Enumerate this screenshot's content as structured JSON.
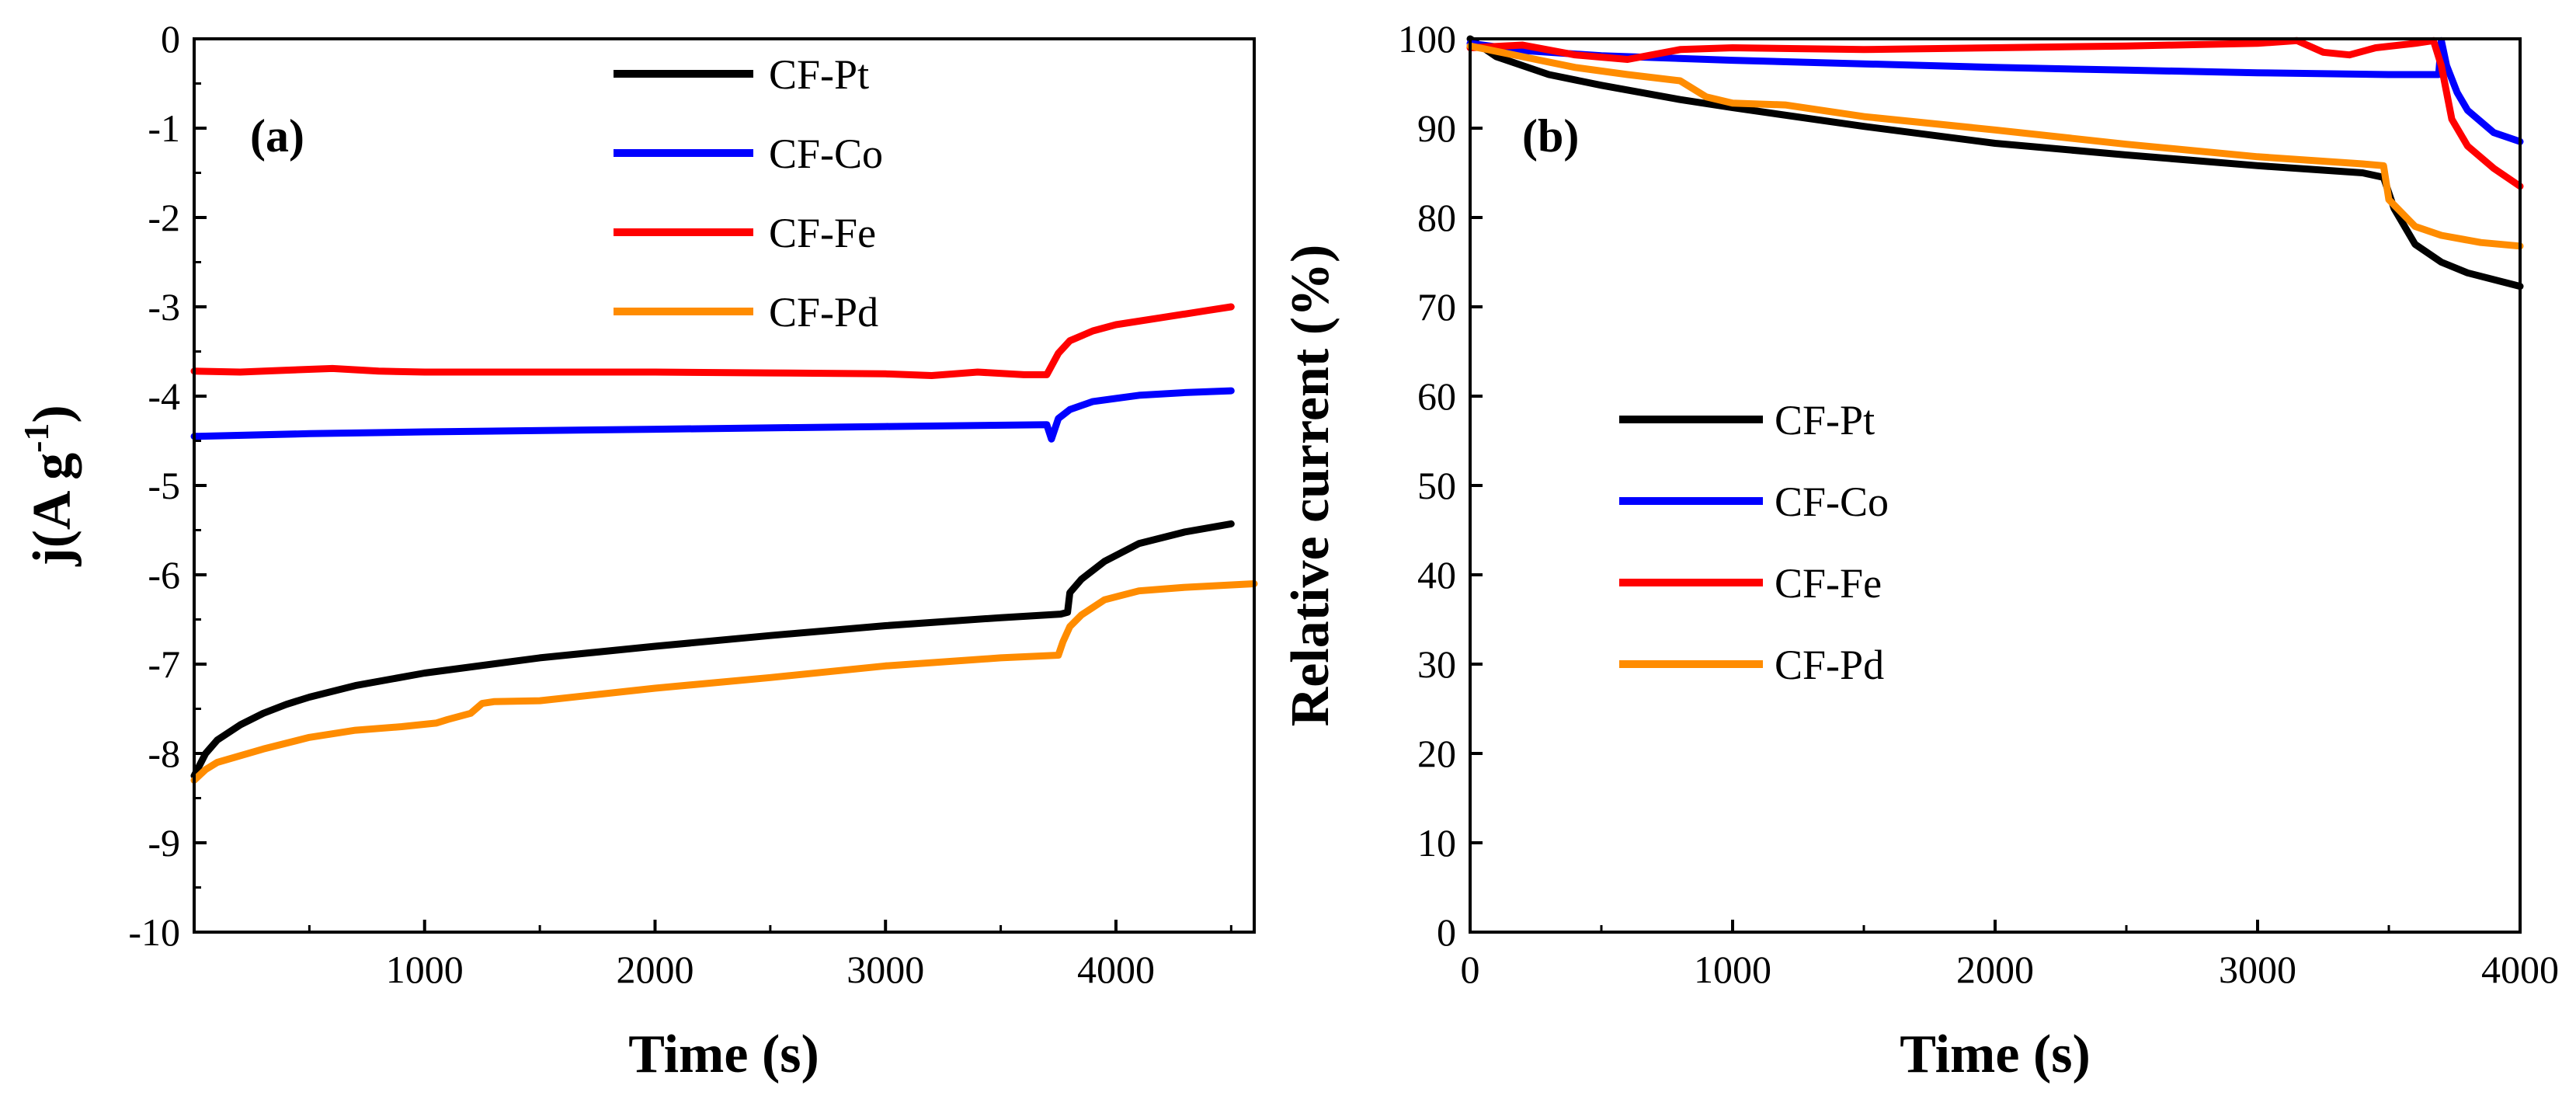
{
  "chart_data": [
    {
      "type": "line",
      "panel_label": "(a)",
      "xlabel": "Time (s)",
      "ylabel": "j(A g",
      "ylabel_superscript": "-1",
      "ylabel_suffix": ")",
      "xlim": [
        0,
        4600
      ],
      "ylim": [
        -10,
        0
      ],
      "xticks": [
        1000,
        2000,
        3000,
        4000
      ],
      "yticks": [
        0,
        -1,
        -2,
        -3,
        -4,
        -5,
        -6,
        -7,
        -8,
        -9,
        -10
      ],
      "legend_position": "top-center",
      "series": [
        {
          "name": "CF-Pt",
          "color": "#000000",
          "points": [
            [
              0,
              -8.25
            ],
            [
              50,
              -8.0
            ],
            [
              100,
              -7.85
            ],
            [
              200,
              -7.68
            ],
            [
              300,
              -7.55
            ],
            [
              400,
              -7.45
            ],
            [
              500,
              -7.37
            ],
            [
              700,
              -7.24
            ],
            [
              1000,
              -7.1
            ],
            [
              1500,
              -6.93
            ],
            [
              2000,
              -6.8
            ],
            [
              2500,
              -6.68
            ],
            [
              3000,
              -6.57
            ],
            [
              3500,
              -6.48
            ],
            [
              3760,
              -6.44
            ],
            [
              3790,
              -6.42
            ],
            [
              3800,
              -6.2
            ],
            [
              3850,
              -6.05
            ],
            [
              3950,
              -5.85
            ],
            [
              4100,
              -5.65
            ],
            [
              4300,
              -5.52
            ],
            [
              4500,
              -5.43
            ]
          ]
        },
        {
          "name": "CF-Co",
          "color": "#0000ff",
          "points": [
            [
              0,
              -4.45
            ],
            [
              500,
              -4.42
            ],
            [
              1000,
              -4.4
            ],
            [
              2000,
              -4.37
            ],
            [
              3000,
              -4.34
            ],
            [
              3700,
              -4.32
            ],
            [
              3720,
              -4.48
            ],
            [
              3750,
              -4.25
            ],
            [
              3800,
              -4.15
            ],
            [
              3900,
              -4.06
            ],
            [
              4100,
              -3.99
            ],
            [
              4300,
              -3.96
            ],
            [
              4500,
              -3.94
            ]
          ]
        },
        {
          "name": "CF-Fe",
          "color": "#ff0000",
          "points": [
            [
              0,
              -3.72
            ],
            [
              200,
              -3.73
            ],
            [
              400,
              -3.71
            ],
            [
              600,
              -3.69
            ],
            [
              800,
              -3.72
            ],
            [
              1000,
              -3.73
            ],
            [
              1500,
              -3.73
            ],
            [
              2000,
              -3.73
            ],
            [
              2500,
              -3.74
            ],
            [
              3000,
              -3.75
            ],
            [
              3200,
              -3.77
            ],
            [
              3400,
              -3.73
            ],
            [
              3600,
              -3.76
            ],
            [
              3700,
              -3.76
            ],
            [
              3750,
              -3.52
            ],
            [
              3800,
              -3.38
            ],
            [
              3900,
              -3.27
            ],
            [
              4000,
              -3.2
            ],
            [
              4200,
              -3.12
            ],
            [
              4400,
              -3.04
            ],
            [
              4500,
              -3.0
            ]
          ]
        },
        {
          "name": "CF-Pd",
          "color": "#ff8c00",
          "points": [
            [
              0,
              -8.3
            ],
            [
              50,
              -8.18
            ],
            [
              100,
              -8.1
            ],
            [
              300,
              -7.95
            ],
            [
              500,
              -7.82
            ],
            [
              700,
              -7.74
            ],
            [
              900,
              -7.7
            ],
            [
              1050,
              -7.66
            ],
            [
              1100,
              -7.62
            ],
            [
              1200,
              -7.55
            ],
            [
              1250,
              -7.44
            ],
            [
              1300,
              -7.42
            ],
            [
              1500,
              -7.41
            ],
            [
              2000,
              -7.27
            ],
            [
              2500,
              -7.15
            ],
            [
              3000,
              -7.02
            ],
            [
              3500,
              -6.93
            ],
            [
              3750,
              -6.9
            ],
            [
              3770,
              -6.75
            ],
            [
              3800,
              -6.58
            ],
            [
              3850,
              -6.45
            ],
            [
              3950,
              -6.28
            ],
            [
              4100,
              -6.18
            ],
            [
              4300,
              -6.14
            ],
            [
              4600,
              -6.1
            ]
          ]
        }
      ]
    },
    {
      "type": "line",
      "panel_label": "(b)",
      "xlabel": "Time (s)",
      "ylabel": "Relative current (%)",
      "xlim": [
        0,
        4000
      ],
      "ylim": [
        0,
        100
      ],
      "xticks": [
        0,
        1000,
        2000,
        3000,
        4000
      ],
      "yticks": [
        0,
        10,
        20,
        30,
        40,
        50,
        60,
        70,
        80,
        90,
        100
      ],
      "legend_position": "center-left",
      "series": [
        {
          "name": "CF-Pt",
          "color": "#000000",
          "points": [
            [
              0,
              100
            ],
            [
              100,
              98
            ],
            [
              300,
              96
            ],
            [
              500,
              94.8
            ],
            [
              800,
              93.2
            ],
            [
              1000,
              92.3
            ],
            [
              1500,
              90.2
            ],
            [
              2000,
              88.3
            ],
            [
              2500,
              87
            ],
            [
              3000,
              85.8
            ],
            [
              3400,
              85
            ],
            [
              3480,
              84.5
            ],
            [
              3520,
              81
            ],
            [
              3600,
              77
            ],
            [
              3700,
              75
            ],
            [
              3800,
              73.8
            ],
            [
              4000,
              72.3
            ]
          ]
        },
        {
          "name": "CF-Co",
          "color": "#0000ff",
          "points": [
            [
              0,
              99.5
            ],
            [
              200,
              98.7
            ],
            [
              500,
              98.1
            ],
            [
              1000,
              97.6
            ],
            [
              1500,
              97.2
            ],
            [
              2000,
              96.8
            ],
            [
              2500,
              96.5
            ],
            [
              3000,
              96.2
            ],
            [
              3500,
              96.0
            ],
            [
              3690,
              96.0
            ],
            [
              3700,
              99.8
            ],
            [
              3720,
              97
            ],
            [
              3760,
              94
            ],
            [
              3800,
              92
            ],
            [
              3900,
              89.5
            ],
            [
              4000,
              88.5
            ]
          ]
        },
        {
          "name": "CF-Fe",
          "color": "#ff0000",
          "points": [
            [
              0,
              99
            ],
            [
              200,
              99.3
            ],
            [
              400,
              98.2
            ],
            [
              600,
              97.7
            ],
            [
              800,
              98.8
            ],
            [
              1000,
              99
            ],
            [
              1500,
              98.8
            ],
            [
              2000,
              99
            ],
            [
              2500,
              99.2
            ],
            [
              3000,
              99.5
            ],
            [
              3150,
              99.8
            ],
            [
              3250,
              98.5
            ],
            [
              3350,
              98.2
            ],
            [
              3450,
              99
            ],
            [
              3600,
              99.5
            ],
            [
              3670,
              99.8
            ],
            [
              3700,
              97
            ],
            [
              3740,
              91
            ],
            [
              3800,
              88
            ],
            [
              3900,
              85.5
            ],
            [
              4000,
              83.5
            ]
          ]
        },
        {
          "name": "CF-Pd",
          "color": "#ff8c00",
          "points": [
            [
              0,
              99.2
            ],
            [
              200,
              98
            ],
            [
              400,
              96.8
            ],
            [
              600,
              96
            ],
            [
              800,
              95.3
            ],
            [
              900,
              93.5
            ],
            [
              1000,
              92.8
            ],
            [
              1200,
              92.6
            ],
            [
              1500,
              91.3
            ],
            [
              2000,
              89.8
            ],
            [
              2500,
              88.2
            ],
            [
              3000,
              86.8
            ],
            [
              3400,
              86
            ],
            [
              3480,
              85.8
            ],
            [
              3500,
              82
            ],
            [
              3600,
              79
            ],
            [
              3700,
              78
            ],
            [
              3850,
              77.2
            ],
            [
              4000,
              76.8
            ]
          ]
        }
      ]
    }
  ]
}
